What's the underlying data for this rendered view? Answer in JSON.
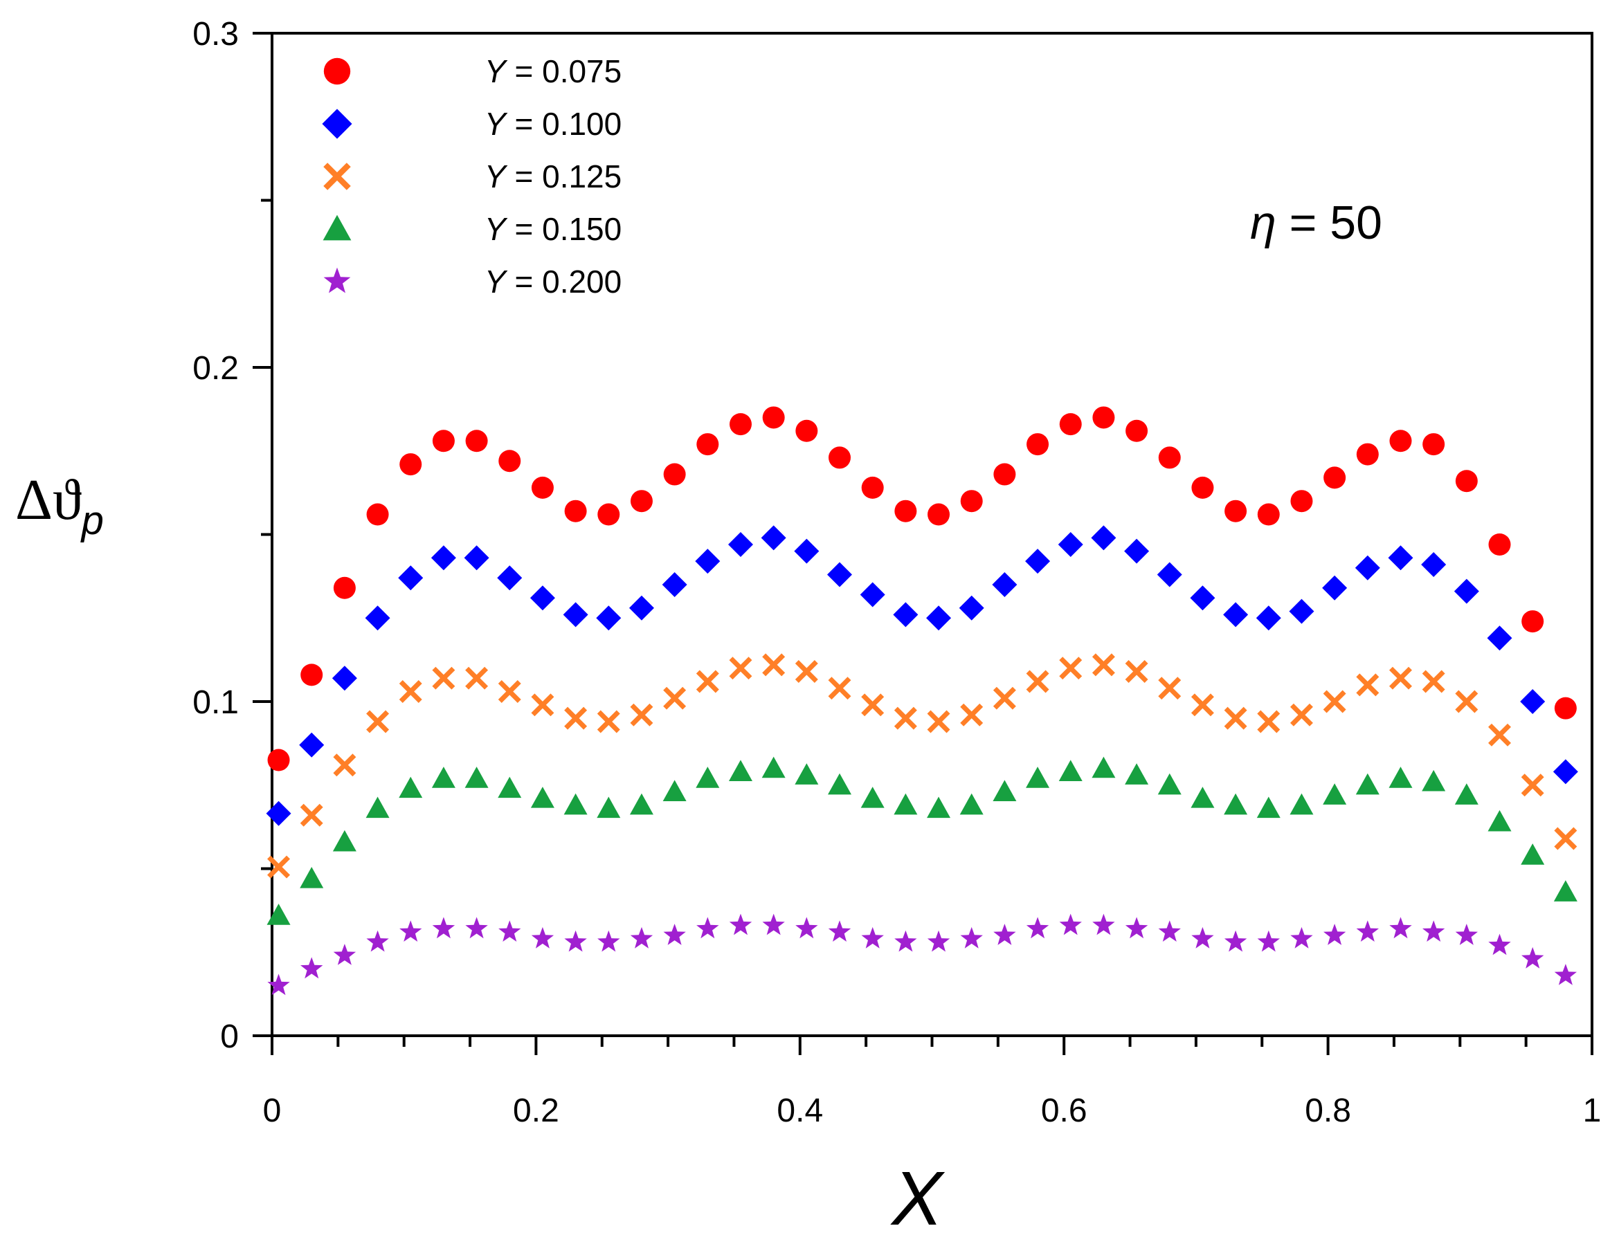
{
  "chart_data": {
    "type": "scatter",
    "title": "",
    "xlabel": "X",
    "ylabel": "Δϑ",
    "ylabel_subscript": "p",
    "xlim": [
      0,
      1
    ],
    "ylim": [
      0,
      0.3
    ],
    "xticks": [
      0,
      0.2,
      0.4,
      0.6,
      0.8,
      1
    ],
    "xtick_labels": [
      "0",
      "0.2",
      "0.4",
      "0.6",
      "0.8",
      "1"
    ],
    "yticks": [
      0,
      0.1,
      0.2,
      0.3
    ],
    "ytick_labels": [
      "0",
      "0.1",
      "0.2",
      "0.3"
    ],
    "grid": false,
    "legend_position": "top-left",
    "annotation": {
      "symbol": "η",
      "text": " = 50"
    },
    "x": [
      0.005,
      0.03,
      0.055,
      0.08,
      0.105,
      0.13,
      0.155,
      0.18,
      0.205,
      0.23,
      0.255,
      0.28,
      0.305,
      0.33,
      0.355,
      0.38,
      0.405,
      0.43,
      0.455,
      0.48,
      0.505,
      0.53,
      0.555,
      0.58,
      0.605,
      0.63,
      0.655,
      0.68,
      0.705,
      0.73,
      0.755,
      0.78,
      0.805,
      0.83,
      0.855,
      0.88,
      0.905,
      0.93,
      0.955,
      0.98
    ],
    "series": [
      {
        "name": "Y = 0.075",
        "label_var": "Y",
        "label_rest": " = 0.075",
        "marker": "circle",
        "color": "#ff0000",
        "values": [
          0.0825,
          0.108,
          0.134,
          0.156,
          0.171,
          0.178,
          0.178,
          0.172,
          0.164,
          0.157,
          0.156,
          0.16,
          0.168,
          0.177,
          0.183,
          0.185,
          0.181,
          0.173,
          0.164,
          0.157,
          0.156,
          0.16,
          0.168,
          0.177,
          0.183,
          0.185,
          0.181,
          0.173,
          0.164,
          0.157,
          0.156,
          0.16,
          0.167,
          0.174,
          0.178,
          0.177,
          0.166,
          0.147,
          0.124,
          0.098
        ]
      },
      {
        "name": "Y = 0.100",
        "label_var": "Y",
        "label_rest": " = 0.100",
        "marker": "diamond",
        "color": "#0000ff",
        "values": [
          0.0665,
          0.087,
          0.107,
          0.125,
          0.137,
          0.143,
          0.143,
          0.137,
          0.131,
          0.126,
          0.125,
          0.128,
          0.135,
          0.142,
          0.147,
          0.149,
          0.145,
          0.138,
          0.132,
          0.126,
          0.125,
          0.128,
          0.135,
          0.142,
          0.147,
          0.149,
          0.145,
          0.138,
          0.131,
          0.126,
          0.125,
          0.127,
          0.134,
          0.14,
          0.143,
          0.141,
          0.133,
          0.119,
          0.1,
          0.079
        ]
      },
      {
        "name": "Y = 0.125",
        "label_var": "Y",
        "label_rest": " = 0.125",
        "marker": "cross",
        "color": "#ff7f27",
        "values": [
          0.0505,
          0.066,
          0.081,
          0.094,
          0.103,
          0.107,
          0.107,
          0.103,
          0.099,
          0.095,
          0.094,
          0.096,
          0.101,
          0.106,
          0.11,
          0.111,
          0.109,
          0.104,
          0.099,
          0.095,
          0.094,
          0.096,
          0.101,
          0.106,
          0.11,
          0.111,
          0.109,
          0.104,
          0.099,
          0.095,
          0.094,
          0.096,
          0.1,
          0.105,
          0.107,
          0.106,
          0.1,
          0.09,
          0.075,
          0.059
        ]
      },
      {
        "name": "Y = 0.150",
        "label_var": "Y",
        "label_rest": " = 0.150",
        "marker": "triangle",
        "color": "#17a040",
        "values": [
          0.036,
          0.047,
          0.058,
          0.068,
          0.074,
          0.077,
          0.077,
          0.074,
          0.071,
          0.069,
          0.068,
          0.069,
          0.073,
          0.077,
          0.079,
          0.08,
          0.078,
          0.075,
          0.071,
          0.069,
          0.068,
          0.069,
          0.073,
          0.077,
          0.079,
          0.08,
          0.078,
          0.075,
          0.071,
          0.069,
          0.068,
          0.069,
          0.072,
          0.075,
          0.077,
          0.076,
          0.072,
          0.064,
          0.054,
          0.043
        ]
      },
      {
        "name": "Y = 0.200",
        "label_var": "Y",
        "label_rest": " = 0.200",
        "marker": "star",
        "color": "#a020d0",
        "values": [
          0.015,
          0.02,
          0.024,
          0.028,
          0.031,
          0.032,
          0.032,
          0.031,
          0.029,
          0.028,
          0.028,
          0.029,
          0.03,
          0.032,
          0.033,
          0.033,
          0.032,
          0.031,
          0.029,
          0.028,
          0.028,
          0.029,
          0.03,
          0.032,
          0.033,
          0.033,
          0.032,
          0.031,
          0.029,
          0.028,
          0.028,
          0.029,
          0.03,
          0.031,
          0.032,
          0.031,
          0.03,
          0.027,
          0.023,
          0.018
        ]
      }
    ]
  }
}
